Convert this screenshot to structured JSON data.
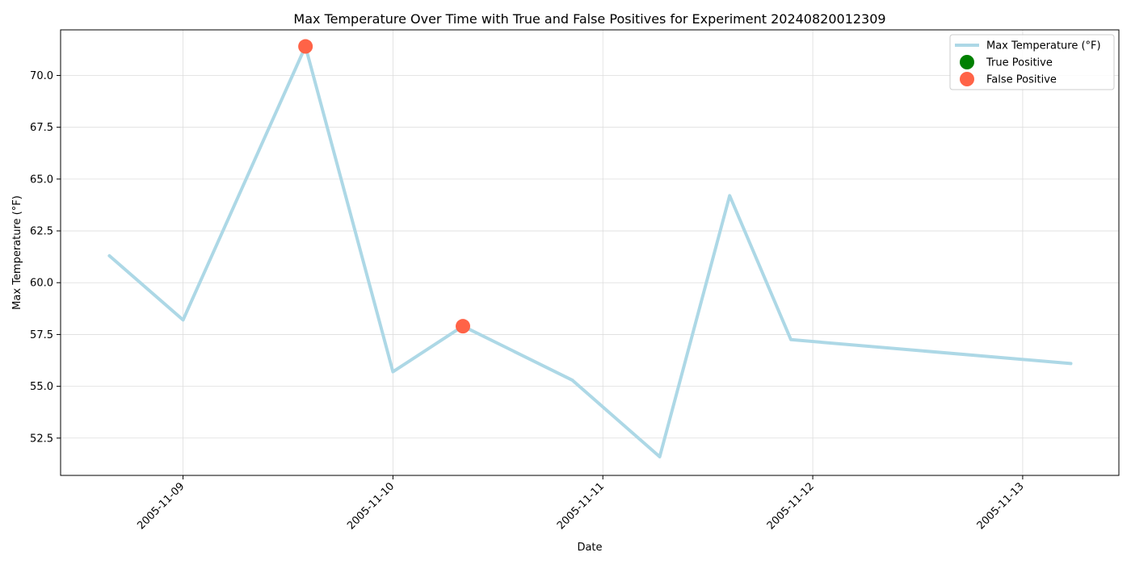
{
  "chart_data": {
    "type": "line",
    "title": "Max Temperature Over Time with True and False Positives for Experiment 20240820012309",
    "xlabel": "Date",
    "ylabel": "Max Temperature (°F)",
    "x_ticks": [
      "2005-11-09",
      "2005-11-10",
      "2005-11-11",
      "2005-11-12",
      "2005-11-13"
    ],
    "y_ticks": [
      52.5,
      55.0,
      57.5,
      60.0,
      62.5,
      65.0,
      67.5,
      70.0
    ],
    "xlim": [
      "2005-11-08 10:00",
      "2005-11-13 11:00"
    ],
    "ylim": [
      50.7,
      72.2
    ],
    "grid": true,
    "legend_position": "top-right",
    "series": [
      {
        "name": "Max Temperature (°F)",
        "kind": "line",
        "color": "#add8e6",
        "points": [
          {
            "x": "2005-11-08 15:35",
            "y": 61.3
          },
          {
            "x": "2005-11-09 00:00",
            "y": 58.2
          },
          {
            "x": "2005-11-09 14:00",
            "y": 71.4
          },
          {
            "x": "2005-11-10 00:00",
            "y": 55.7
          },
          {
            "x": "2005-11-10 08:00",
            "y": 57.9
          },
          {
            "x": "2005-11-10 20:30",
            "y": 55.3
          },
          {
            "x": "2005-11-11 06:30",
            "y": 51.6
          },
          {
            "x": "2005-11-11 14:30",
            "y": 64.2
          },
          {
            "x": "2005-11-11 21:30",
            "y": 57.25
          },
          {
            "x": "2005-11-13 05:30",
            "y": 56.1
          }
        ]
      },
      {
        "name": "True Positive",
        "kind": "scatter",
        "color": "#008000",
        "points": []
      },
      {
        "name": "False Positive",
        "kind": "scatter",
        "color": "#ff6347",
        "points": [
          {
            "x": "2005-11-09 14:00",
            "y": 71.4
          },
          {
            "x": "2005-11-10 08:00",
            "y": 57.9
          }
        ]
      }
    ]
  }
}
